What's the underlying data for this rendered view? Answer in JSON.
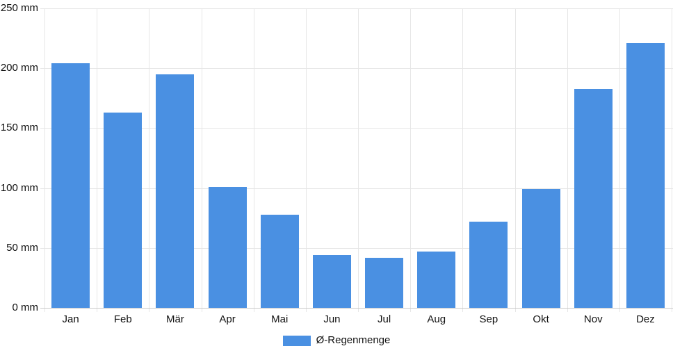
{
  "chart_data": {
    "type": "bar",
    "title": "",
    "xlabel": "",
    "ylabel": "",
    "unit": "mm",
    "categories": [
      "Jan",
      "Feb",
      "Mär",
      "Apr",
      "Mai",
      "Jun",
      "Jul",
      "Aug",
      "Sep",
      "Okt",
      "Nov",
      "Dez"
    ],
    "values": [
      204,
      163,
      195,
      101,
      78,
      44,
      42,
      47,
      72,
      99,
      183,
      221
    ],
    "series_name": "Ø-Regenmenge",
    "ylim": [
      0,
      250
    ],
    "ytick_step": 50,
    "ytick_labels": [
      "0 mm",
      "50 mm",
      "100 mm",
      "150 mm",
      "200 mm",
      "250 mm"
    ],
    "grid": true,
    "legend_position": "bottom",
    "bar_color": "#4a90e2",
    "gridline_color": "#e6e6e6",
    "axis_line_color": "#c9c9c9",
    "text_color": "#111111"
  }
}
